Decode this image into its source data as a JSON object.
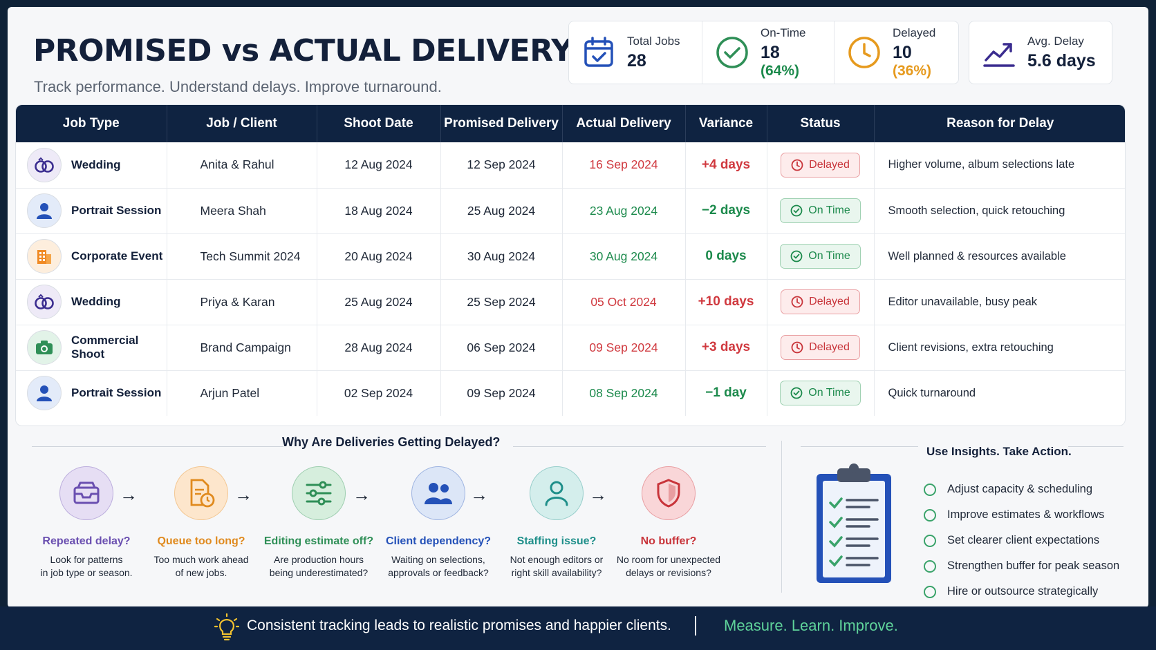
{
  "header": {
    "title": "PROMISED vs ACTUAL DELIVERY",
    "subtitle": "Track performance. Understand delays. Improve turnaround."
  },
  "stats": {
    "total": {
      "label": "Total Jobs",
      "value": "28",
      "icon": "calendar-check-icon"
    },
    "ontime": {
      "label": "On-Time",
      "value": "18",
      "extra": "(64%)",
      "icon": "check-circle-icon"
    },
    "delayed": {
      "label": "Delayed",
      "value": "10",
      "extra": "(36%)",
      "icon": "clock-icon"
    },
    "avg": {
      "label": "Avg. Delay",
      "value": "5.6 days",
      "icon": "trend-up-icon"
    }
  },
  "table": {
    "headers": [
      "Job Type",
      "Job / Client",
      "Shoot Date",
      "Promised Delivery",
      "Actual Delivery",
      "Variance",
      "Status",
      "Reason for Delay"
    ],
    "rows": [
      {
        "type": "Wedding",
        "client": "Anita & Rahul",
        "shoot": "12 Aug 2024",
        "promised": "12 Sep 2024",
        "actual": "16 Sep 2024",
        "variance": "+4 days",
        "status": "Delayed",
        "reason": "Higher volume, album selections late"
      },
      {
        "type": "Portrait Session",
        "client": "Meera Shah",
        "shoot": "18 Aug 2024",
        "promised": "25 Aug 2024",
        "actual": "23 Aug 2024",
        "variance": "−2 days",
        "status": "On Time",
        "reason": "Smooth selection, quick retouching"
      },
      {
        "type": "Corporate Event",
        "client": "Tech Summit 2024",
        "shoot": "20 Aug 2024",
        "promised": "30 Aug 2024",
        "actual": "30 Aug 2024",
        "variance": "0 days",
        "status": "On Time",
        "reason": "Well planned & resources available"
      },
      {
        "type": "Wedding",
        "client": "Priya & Karan",
        "shoot": "25 Aug 2024",
        "promised": "25 Sep 2024",
        "actual": "05 Oct 2024",
        "variance": "+10 days",
        "status": "Delayed",
        "reason": "Editor unavailable, busy peak"
      },
      {
        "type": "Commercial Shoot",
        "client": "Brand Campaign",
        "shoot": "28 Aug 2024",
        "promised": "06 Sep 2024",
        "actual": "09 Sep 2024",
        "variance": "+3 days",
        "status": "Delayed",
        "reason": "Client revisions, extra retouching"
      },
      {
        "type": "Portrait Session",
        "client": "Arjun Patel",
        "shoot": "02 Sep 2024",
        "promised": "09 Sep 2024",
        "actual": "08 Sep 2024",
        "variance": "−1 day",
        "status": "On Time",
        "reason": "Quick turnaround"
      }
    ]
  },
  "why": {
    "title": "Why Are Deliveries Getting Delayed?",
    "causes": [
      {
        "title": "Repeated delay?",
        "line1": "Look for patterns",
        "line2": "in job type or season.",
        "color": "#6a4fb0",
        "bg": "#e6def4",
        "icon": "inbox-icon"
      },
      {
        "title": "Queue too long?",
        "line1": "Too much work ahead",
        "line2": "of new jobs.",
        "color": "#e08a1e",
        "bg": "#fde6cc",
        "icon": "document-clock-icon"
      },
      {
        "title": "Editing estimate off?",
        "line1": "Are production hours",
        "line2": "being underestimated?",
        "color": "#2f8f57",
        "bg": "#d6eedd",
        "icon": "sliders-icon"
      },
      {
        "title": "Client dependency?",
        "line1": "Waiting on selections,",
        "line2": "approvals or feedback?",
        "color": "#2451b8",
        "bg": "#dce6f7",
        "icon": "users-icon"
      },
      {
        "title": "Staffing issue?",
        "line1": "Not enough editors or",
        "line2": "right skill availability?",
        "color": "#1f8f8a",
        "bg": "#d4eeec",
        "icon": "user-icon"
      },
      {
        "title": "No buffer?",
        "line1": "No room for unexpected",
        "line2": "delays or revisions?",
        "color": "#c8343a",
        "bg": "#f9d6d8",
        "icon": "shield-icon"
      }
    ]
  },
  "actions": {
    "title": "Use Insights. Take Action.",
    "items": [
      "Adjust capacity & scheduling",
      "Improve estimates & workflows",
      "Set clearer client expectations",
      "Strengthen buffer for peak season",
      "Hire or outsource strategically"
    ]
  },
  "footer": {
    "text": "Consistent tracking leads to realistic promises and happier clients.",
    "tagline": "Measure. Learn. Improve."
  }
}
